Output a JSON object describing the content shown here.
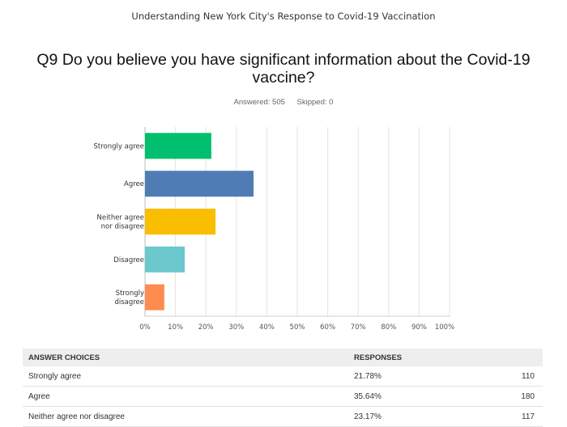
{
  "survey": {
    "title": "Understanding New York City's Response to Covid-19 Vaccination"
  },
  "question": {
    "text": "Q9 Do you believe you have significant information about the Covid-19 vaccine?"
  },
  "stats": {
    "answered": "Answered: 505",
    "skipped": "Skipped: 0"
  },
  "chart_data": {
    "type": "bar",
    "orientation": "horizontal",
    "categories": [
      "Strongly agree",
      "Agree",
      "Neither agree nor disagree",
      "Disagree",
      "Strongly disagree"
    ],
    "category_lines": [
      [
        "Strongly agree"
      ],
      [
        "Agree"
      ],
      [
        "Neither agree",
        "nor disagree"
      ],
      [
        "Disagree"
      ],
      [
        "Strongly",
        "disagree"
      ]
    ],
    "values": [
      21.78,
      35.64,
      23.17,
      13.07,
      6.34
    ],
    "colors": [
      "#00bf6f",
      "#507cb6",
      "#f9be00",
      "#6bc8cd",
      "#ff8b4f"
    ],
    "xlim": [
      0,
      100
    ],
    "xticks": [
      "0%",
      "10%",
      "20%",
      "30%",
      "40%",
      "50%",
      "60%",
      "70%",
      "80%",
      "90%",
      "100%"
    ],
    "grid": true
  },
  "table": {
    "headers": {
      "choices": "ANSWER CHOICES",
      "responses": "RESPONSES"
    },
    "rows": [
      {
        "choice": "Strongly agree",
        "percent": "21.78%",
        "count": "110"
      },
      {
        "choice": "Agree",
        "percent": "35.64%",
        "count": "180"
      },
      {
        "choice": "Neither agree nor disagree",
        "percent": "23.17%",
        "count": "117"
      }
    ]
  }
}
